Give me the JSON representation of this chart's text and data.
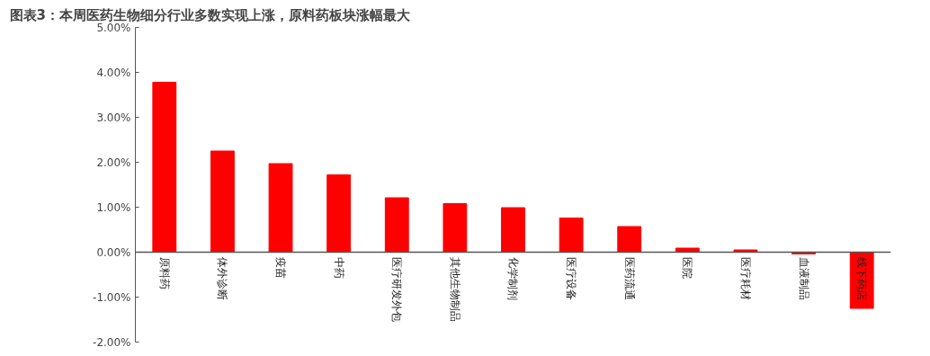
{
  "chart_data": {
    "type": "bar",
    "title": "图表3：本周医药生物细分行业多数实现上涨，原料药板块涨幅最大",
    "categories": [
      "原料药",
      "体外诊断",
      "疫苗",
      "中药",
      "医疗研发外包",
      "其他生物制品",
      "化学制剂",
      "医疗设备",
      "医药流通",
      "医院",
      "医疗耗材",
      "血液制品",
      "线下药店"
    ],
    "values": [
      3.78,
      2.25,
      1.97,
      1.72,
      1.21,
      1.08,
      0.99,
      0.76,
      0.57,
      0.09,
      0.05,
      -0.04,
      -1.25
    ],
    "color": "#ff0000",
    "ylim": [
      -2,
      5
    ],
    "yticks": [
      {
        "value": -2,
        "label": "-2.00%"
      },
      {
        "value": -1,
        "label": "-1.00%"
      },
      {
        "value": 0,
        "label": "0.00%"
      },
      {
        "value": 1,
        "label": "1.00%"
      },
      {
        "value": 2,
        "label": "2.00%"
      },
      {
        "value": 3,
        "label": "3.00%"
      },
      {
        "value": 4,
        "label": "4.00%"
      },
      {
        "value": 5,
        "label": "5.00%"
      }
    ],
    "grid": false
  }
}
